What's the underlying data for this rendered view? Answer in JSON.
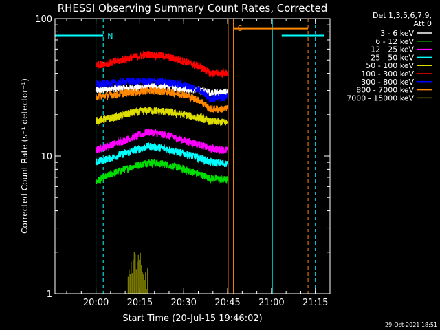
{
  "chart_data": {
    "type": "line",
    "title": "RHESSI Observing Summary Count Rates, Corrected",
    "xlabel": "Start Time (20-Jul-15 19:46:02)",
    "ylabel": "Corrected Count Rate (s⁻¹ detector⁻¹)",
    "yscale": "log",
    "ylim": [
      1,
      100
    ],
    "xlim_minutes": [
      -14,
      80
    ],
    "x_ticks": [
      {
        "label": "20:00",
        "t": 0
      },
      {
        "label": "20:15",
        "t": 15
      },
      {
        "label": "20:30",
        "t": 30
      },
      {
        "label": "20:45",
        "t": 45
      },
      {
        "label": "21:00",
        "t": 60
      },
      {
        "label": "21:15",
        "t": 75
      }
    ],
    "y_ticks": [
      {
        "label": "100",
        "v": 100
      },
      {
        "label": "10",
        "v": 10
      },
      {
        "label": "1",
        "v": 1
      }
    ],
    "legend_header": [
      "Det 1,3,5,6,7,9,",
      "Att 0"
    ],
    "series": [
      {
        "name": "3 - 6 keV",
        "color": "#ffffff",
        "t": [
          0,
          6,
          12,
          18,
          24,
          30,
          36,
          39,
          45
        ],
        "values": [
          30,
          31,
          31,
          32,
          32,
          31,
          30,
          29,
          29
        ]
      },
      {
        "name": "6 - 12 keV",
        "color": "#00dd00",
        "t": [
          0,
          6,
          12,
          18,
          24,
          30,
          36,
          39,
          45
        ],
        "values": [
          6.5,
          7.5,
          8.3,
          9,
          8.7,
          8,
          7.3,
          6.9,
          6.7
        ]
      },
      {
        "name": "12 - 25 keV",
        "color": "#ff00ff",
        "t": [
          0,
          6,
          12,
          18,
          24,
          30,
          36,
          39,
          45
        ],
        "values": [
          11,
          12.2,
          13.5,
          15,
          14.2,
          13,
          12,
          11.3,
          11
        ]
      },
      {
        "name": "25 - 50 keV",
        "color": "#00ffff",
        "t": [
          0,
          6,
          12,
          18,
          24,
          30,
          36,
          39,
          45
        ],
        "values": [
          9,
          9.8,
          10.8,
          11.8,
          11.3,
          10.4,
          9.6,
          9,
          8.8
        ]
      },
      {
        "name": "50 - 100 keV",
        "color": "#dddd00",
        "t": [
          0,
          6,
          12,
          18,
          24,
          30,
          36,
          39,
          45
        ],
        "values": [
          18,
          19,
          20.5,
          21.5,
          21,
          20,
          18.8,
          17.8,
          17.5
        ]
      },
      {
        "name": "100 - 300 keV",
        "color": "#ff0000",
        "t": [
          0,
          6,
          12,
          18,
          24,
          30,
          36,
          39,
          45
        ],
        "values": [
          46,
          48,
          52,
          55,
          53,
          49,
          44,
          40,
          40
        ]
      },
      {
        "name": "300 - 800 keV",
        "color": "#0000ff",
        "t": [
          0,
          6,
          12,
          18,
          24,
          30,
          36,
          39,
          45
        ],
        "values": [
          33,
          34,
          35,
          35,
          34.5,
          33,
          30,
          26,
          27
        ]
      },
      {
        "name": "800 - 7000 keV",
        "color": "#ff8800",
        "t": [
          0,
          6,
          12,
          18,
          24,
          30,
          36,
          39,
          45
        ],
        "values": [
          27,
          28,
          29,
          30,
          29.5,
          28,
          25,
          22,
          22
        ]
      },
      {
        "name": "7000 - 15000 keV",
        "color": "#808000",
        "t": [
          11,
          12,
          13,
          14,
          15,
          16,
          17,
          18
        ],
        "values": [
          1.7,
          1.4,
          1.8,
          1.5,
          1.6,
          1.9,
          1.3,
          1.7
        ]
      }
    ],
    "annotations": [
      {
        "text": "N",
        "t": 2.5,
        "color": "#00ffff"
      },
      {
        "text": "S",
        "t": 47,
        "color": "#ff8800"
      }
    ],
    "cyan_segments_t": [
      [
        -14,
        2.5
      ],
      [
        63.5,
        78
      ]
    ],
    "cyan_level": 75,
    "orange_segment_t": [
      47,
      72.5
    ],
    "orange_level": 85,
    "vlines": [
      {
        "t": 0,
        "color": "#00ffff",
        "style": "solid"
      },
      {
        "t": 2.5,
        "color": "#00ffff",
        "style": "dashed"
      },
      {
        "t": 45.2,
        "color": "#ff8800",
        "style": "solid"
      },
      {
        "t": 47,
        "color": "#ff8800",
        "style": "solid"
      },
      {
        "t": 60.3,
        "color": "#00ffff",
        "style": "solid"
      },
      {
        "t": 72.5,
        "color": "#ff8800",
        "style": "dashed"
      },
      {
        "t": 75,
        "color": "#00ffff",
        "style": "dashed"
      }
    ],
    "footer": "29-Oct-2021 18:51"
  }
}
